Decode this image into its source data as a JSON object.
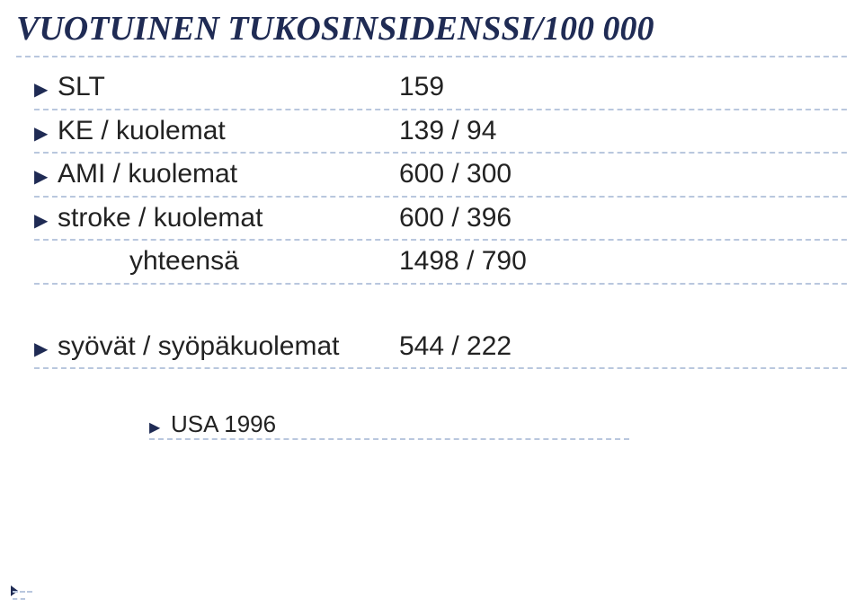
{
  "title": "VUOTUINEN TUKOSINSIDENSSI/100 000",
  "rows": [
    {
      "label": "SLT",
      "value": "159"
    },
    {
      "label": "KE / kuolemat",
      "value": "139 / 94"
    },
    {
      "label": "AMI / kuolemat",
      "value": "600 / 300"
    },
    {
      "label": "stroke / kuolemat",
      "value": "600 / 396"
    }
  ],
  "total": {
    "label": "yhteensä",
    "value": "1498 / 790"
  },
  "secondary": {
    "label": "syövät / syöpäkuolemat",
    "value": "544 / 222"
  },
  "source": "USA 1996",
  "colors": {
    "title": "#1f2b54",
    "marker": "#1f2b54",
    "dash": "#b9c7de",
    "text": "#222222",
    "background": "#ffffff"
  },
  "fonts": {
    "title_family": "Century Schoolbook serif",
    "title_size_pt": 28,
    "body_family": "Arial",
    "body_size_pt": 22,
    "source_size_pt": 19
  }
}
